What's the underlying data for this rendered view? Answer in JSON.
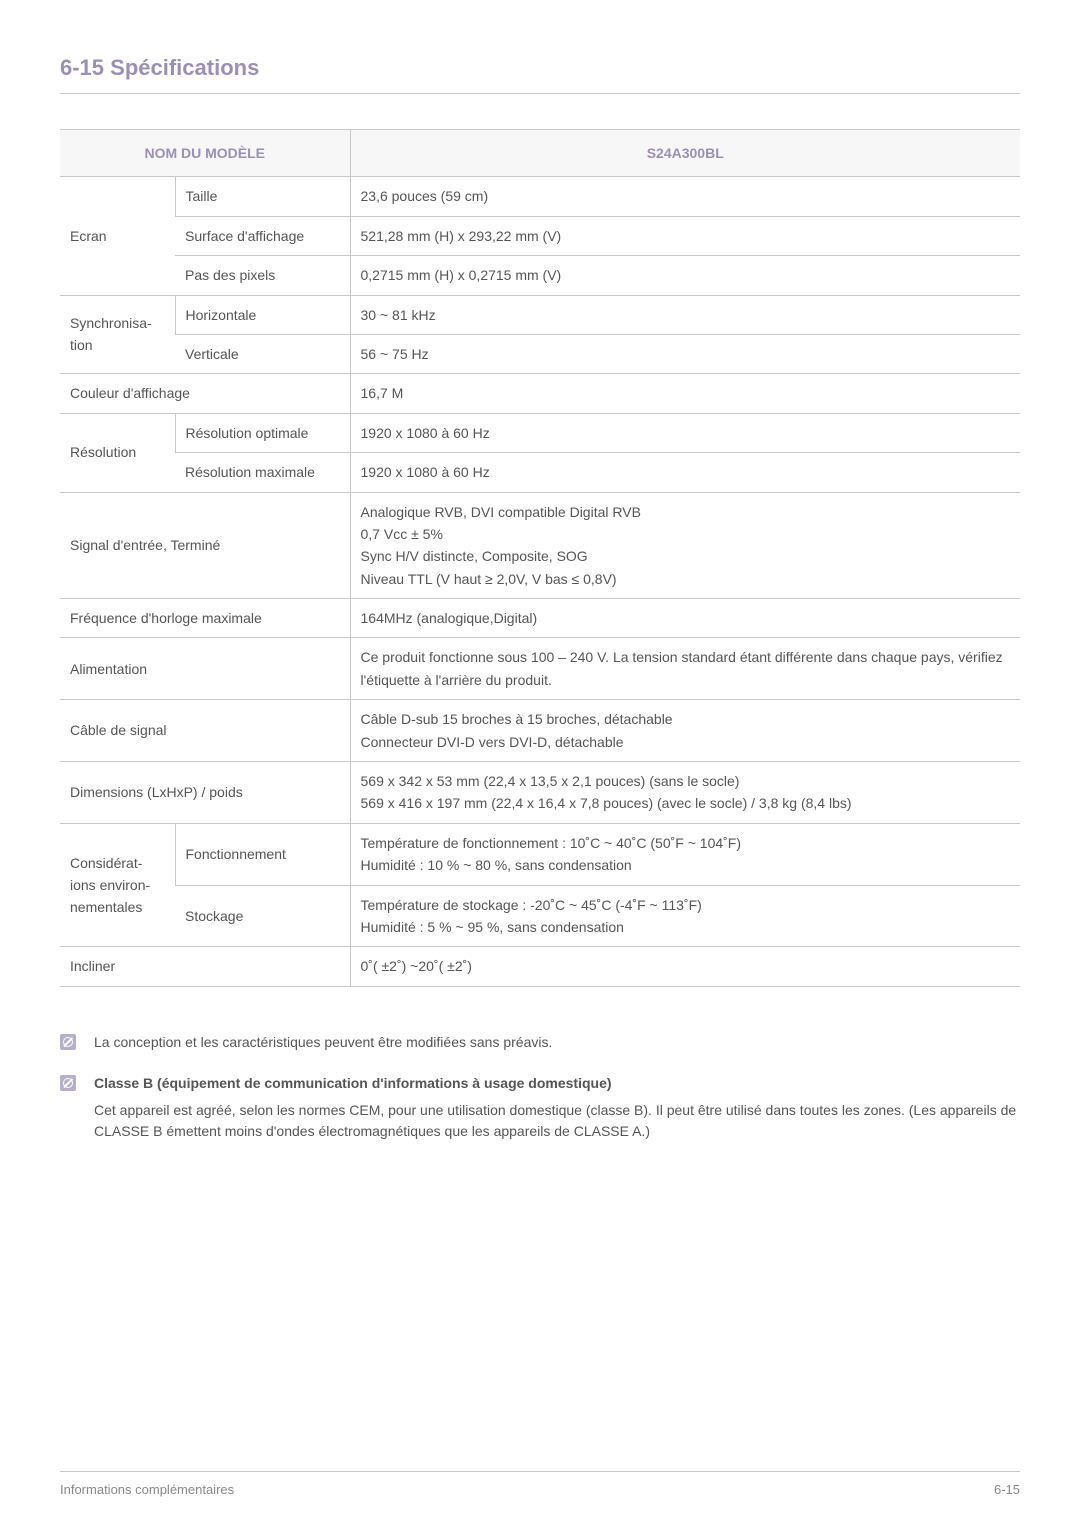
{
  "section_title": "6-15  Spécifications",
  "colors": {
    "accent": "#9b8fb5",
    "text": "#555555",
    "border": "#c8c8c8",
    "header_bg": "#f7f7f7",
    "icon_bg": "#b8b0c9"
  },
  "table": {
    "header_left": "NOM DU MODÈLE",
    "header_right": "S24A300BL",
    "rows": [
      {
        "a": "Ecran",
        "a_rowspan": 3,
        "b": "Taille",
        "c": "23,6 pouces (59 cm)"
      },
      {
        "b": "Surface d'affichage",
        "c": "521,28 mm (H) x 293,22 mm (V)"
      },
      {
        "b": "Pas des pixels",
        "c": "0,2715 mm (H) x 0,2715 mm (V)"
      },
      {
        "a": "Synchronisa-tion",
        "a_rowspan": 2,
        "b": "Horizontale",
        "c": "30 ~ 81 kHz"
      },
      {
        "b": "Verticale",
        "c": "56 ~ 75 Hz"
      },
      {
        "ab": "Couleur d'affichage",
        "c": "16,7 M"
      },
      {
        "a": "Résolution",
        "a_rowspan": 2,
        "b": "Résolution optimale",
        "c": "1920 x 1080 à 60 Hz"
      },
      {
        "b": "Résolution maximale",
        "c": "1920 x 1080 à 60 Hz"
      },
      {
        "ab": "Signal d'entrée, Terminé",
        "c_lines": [
          "Analogique RVB, DVI compatible Digital RVB",
          "0,7 Vcc ± 5%",
          "Sync H/V distincte, Composite, SOG",
          "Niveau TTL (V haut ≥ 2,0V, V bas ≤ 0,8V)"
        ]
      },
      {
        "ab": "Fréquence d'horloge maximale",
        "c": "164MHz (analogique,Digital)"
      },
      {
        "ab": "Alimentation",
        "c": "Ce produit fonctionne sous 100 – 240 V. La tension standard étant différente dans chaque pays, vérifiez l'étiquette à l'arrière du produit."
      },
      {
        "ab": "Câble de signal",
        "c_lines": [
          "Câble D-sub 15 broches à 15 broches, détachable",
          "Connecteur DVI-D vers DVI-D, détachable"
        ]
      },
      {
        "ab": "Dimensions (LxHxP) / poids",
        "c_lines": [
          "569 x 342 x 53 mm (22,4 x 13,5 x 2,1 pouces) (sans le socle)",
          "569 x 416 x 197 mm (22,4 x 16,4 x 7,8 pouces) (avec le socle) / 3,8 kg (8,4 lbs)"
        ]
      },
      {
        "a": "Considérat-ions environ-nementales",
        "a_rowspan": 2,
        "b": "Fonctionnement",
        "c_lines": [
          "Température de fonctionnement : 10˚C ~ 40˚C (50˚F ~ 104˚F)",
          "Humidité : 10 % ~ 80 %, sans condensation"
        ]
      },
      {
        "b": "Stockage",
        "c_lines": [
          "Température de stockage  : -20˚C ~ 45˚C (-4˚F ~ 113˚F)",
          "Humidité : 5 % ~ 95 %, sans condensation"
        ]
      },
      {
        "ab": "Incliner",
        "c": "0˚( ±2˚) ~20˚( ±2˚)"
      }
    ]
  },
  "notes": [
    {
      "text": "La conception et les caractéristiques peuvent être modifiées sans préavis."
    },
    {
      "bold": "Classe B (équipement de communication d'informations à usage domestique)",
      "text": "Cet appareil est agréé, selon les normes CEM, pour une utilisation domestique (classe B). Il peut être utilisé dans toutes les zones. (Les appareils de CLASSE B émettent moins d'ondes électromagnétiques que les appareils de CLASSE A.)"
    }
  ],
  "footer": {
    "left": "Informations complémentaires",
    "right": "6-15"
  }
}
